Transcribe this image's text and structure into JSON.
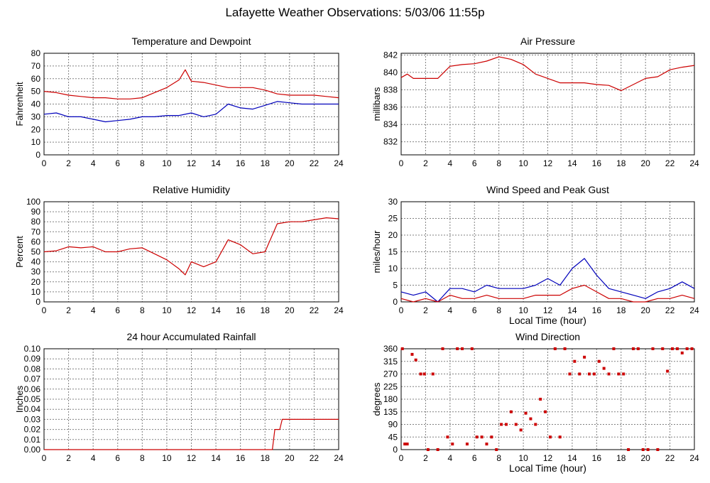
{
  "title": "Lafayette Weather Observations: 5/03/06 11:55p",
  "colors": {
    "red": "#cc0000",
    "blue": "#0000bb",
    "grid": "#808080"
  },
  "chart_data": [
    {
      "type": "line",
      "title": "Temperature and Dewpoint",
      "xlabel": "",
      "ylabel": "Fahrenheit",
      "xlim": [
        0,
        24
      ],
      "ylim": [
        0,
        80
      ],
      "xticks": [
        0,
        2,
        4,
        6,
        8,
        10,
        12,
        14,
        16,
        18,
        20,
        22,
        24
      ],
      "yticks": [
        0,
        10,
        20,
        30,
        40,
        50,
        60,
        70,
        80
      ],
      "grid": true,
      "series": [
        {
          "color": "red",
          "x": [
            0,
            1,
            2,
            3,
            4,
            5,
            6,
            7,
            8,
            9,
            10,
            11,
            11.5,
            12,
            13,
            14,
            15,
            16,
            17,
            18,
            19,
            20,
            21,
            22,
            23,
            24
          ],
          "y": [
            50,
            49,
            47,
            46,
            45,
            45,
            44,
            44,
            45,
            49,
            53,
            59,
            67,
            58,
            57,
            55,
            53,
            53,
            53,
            51,
            48,
            47,
            47,
            47,
            46,
            45
          ]
        },
        {
          "color": "blue",
          "x": [
            0,
            1,
            2,
            3,
            4,
            5,
            6,
            7,
            8,
            9,
            10,
            11,
            12,
            13,
            14,
            15,
            16,
            17,
            18,
            19,
            20,
            21,
            22,
            23,
            24
          ],
          "y": [
            32,
            33,
            30,
            30,
            28,
            26,
            27,
            28,
            30,
            30,
            31,
            31,
            33,
            30,
            32,
            40,
            37,
            36,
            39,
            42,
            41,
            40,
            40,
            40,
            40
          ]
        }
      ]
    },
    {
      "type": "line",
      "title": "Air Pressure",
      "xlabel": "",
      "ylabel": "millibars",
      "xlim": [
        0,
        24
      ],
      "ylim": [
        830.5,
        842.2
      ],
      "xticks": [
        0,
        2,
        4,
        6,
        8,
        10,
        12,
        14,
        16,
        18,
        20,
        22,
        24
      ],
      "yticks": [
        832,
        834,
        836,
        838,
        840,
        842
      ],
      "grid": true,
      "series": [
        {
          "color": "red",
          "x": [
            0,
            0.5,
            1,
            3,
            4,
            5,
            6,
            7,
            8,
            9,
            10,
            11,
            12,
            13,
            14,
            15,
            16,
            17,
            18,
            19,
            20,
            21,
            22,
            23,
            24
          ],
          "y": [
            839.4,
            839.8,
            839.3,
            839.3,
            840.7,
            840.9,
            841.0,
            841.3,
            841.8,
            841.5,
            840.9,
            839.8,
            839.3,
            838.8,
            838.8,
            838.8,
            838.6,
            838.5,
            837.9,
            838.6,
            839.3,
            839.5,
            840.3,
            840.6,
            840.8
          ]
        }
      ]
    },
    {
      "type": "line",
      "title": "Relative Humidity",
      "xlabel": "",
      "ylabel": "Percent",
      "xlim": [
        0,
        24
      ],
      "ylim": [
        0,
        100
      ],
      "xticks": [
        0,
        2,
        4,
        6,
        8,
        10,
        12,
        14,
        16,
        18,
        20,
        22,
        24
      ],
      "yticks": [
        0,
        10,
        20,
        30,
        40,
        50,
        60,
        70,
        80,
        90,
        100
      ],
      "grid": true,
      "series": [
        {
          "color": "red",
          "x": [
            0,
            1,
            2,
            3,
            4,
            5,
            6,
            7,
            8,
            9,
            10,
            11,
            11.5,
            12,
            13,
            14,
            15,
            16,
            17,
            18,
            19,
            20,
            21,
            22,
            23,
            24
          ],
          "y": [
            50,
            51,
            55,
            54,
            55,
            50,
            50,
            53,
            54,
            48,
            42,
            33,
            27,
            40,
            35,
            40,
            62,
            57,
            48,
            50,
            78,
            80,
            80,
            82,
            84,
            83
          ]
        }
      ]
    },
    {
      "type": "line",
      "title": "Wind Speed and Peak Gust",
      "xlabel": "Local Time (hour)",
      "ylabel": "miles/hour",
      "xlim": [
        0,
        24
      ],
      "ylim": [
        0,
        30
      ],
      "xticks": [
        0,
        2,
        4,
        6,
        8,
        10,
        12,
        14,
        16,
        18,
        20,
        22,
        24
      ],
      "yticks": [
        0,
        5,
        10,
        15,
        20,
        25,
        30
      ],
      "grid": true,
      "series": [
        {
          "color": "blue",
          "x": [
            0,
            1,
            2,
            3,
            4,
            5,
            6,
            7,
            8,
            9,
            10,
            11,
            12,
            13,
            14,
            15,
            16,
            17,
            18,
            19,
            20,
            21,
            22,
            23,
            24
          ],
          "y": [
            3,
            2,
            3,
            0,
            4,
            4,
            3,
            5,
            4,
            4,
            4,
            5,
            7,
            5,
            10,
            13,
            8,
            4,
            3,
            2,
            1,
            3,
            4,
            6,
            4
          ]
        },
        {
          "color": "red",
          "x": [
            0,
            1,
            2,
            3,
            4,
            5,
            6,
            7,
            8,
            9,
            10,
            11,
            12,
            13,
            14,
            15,
            16,
            17,
            18,
            19,
            20,
            21,
            22,
            23,
            24
          ],
          "y": [
            1,
            0,
            1,
            0,
            2,
            1,
            1,
            2,
            1,
            1,
            1,
            2,
            2,
            2,
            4,
            5,
            3,
            1,
            1,
            0,
            0,
            1,
            1,
            2,
            1
          ]
        }
      ]
    },
    {
      "type": "line",
      "title": "24 hour Accumulated Rainfall",
      "xlabel": "",
      "ylabel": "Inches",
      "xlim": [
        0,
        24
      ],
      "ylim": [
        0,
        0.1
      ],
      "xticks": [
        0,
        2,
        4,
        6,
        8,
        10,
        12,
        14,
        16,
        18,
        20,
        22,
        24
      ],
      "yticks": [
        "0.00",
        "0.01",
        "0.02",
        "0.03",
        "0.04",
        "0.05",
        "0.06",
        "0.07",
        "0.08",
        "0.09",
        "0.10"
      ],
      "grid": true,
      "series": [
        {
          "color": "red",
          "x": [
            0,
            18.6,
            18.8,
            19.2,
            19.4,
            24
          ],
          "y": [
            0,
            0,
            0.02,
            0.02,
            0.03,
            0.03
          ]
        }
      ]
    },
    {
      "type": "scatter",
      "title": "Wind Direction",
      "xlabel": "Local Time (hour)",
      "ylabel": "degrees",
      "xlim": [
        0,
        24
      ],
      "ylim": [
        0,
        360
      ],
      "xticks": [
        0,
        2,
        4,
        6,
        8,
        10,
        12,
        14,
        16,
        18,
        20,
        22,
        24
      ],
      "yticks": [
        0,
        45,
        90,
        135,
        180,
        225,
        270,
        315,
        360
      ],
      "grid": true,
      "series": [
        {
          "color": "red",
          "x": [
            0.1,
            0.3,
            0.5,
            0.9,
            1.2,
            1.6,
            1.9,
            2.2,
            2.6,
            3.0,
            3.4,
            3.8,
            4.2,
            4.6,
            5.0,
            5.4,
            5.8,
            6.2,
            6.6,
            7.0,
            7.4,
            7.8,
            8.2,
            8.6,
            9.0,
            9.4,
            9.8,
            10.2,
            10.6,
            11.0,
            11.4,
            11.8,
            12.2,
            12.6,
            13.0,
            13.4,
            13.8,
            14.2,
            14.6,
            15.0,
            15.4,
            15.8,
            16.2,
            16.6,
            17.0,
            17.4,
            17.8,
            18.2,
            18.6,
            19.0,
            19.4,
            19.8,
            20.2,
            20.6,
            21.0,
            21.4,
            21.8,
            22.2,
            22.6,
            23.0,
            23.4,
            23.8
          ],
          "y": [
            360,
            20,
            20,
            340,
            320,
            270,
            270,
            0,
            270,
            0,
            360,
            45,
            20,
            360,
            360,
            20,
            360,
            45,
            45,
            20,
            45,
            0,
            90,
            90,
            135,
            90,
            70,
            130,
            110,
            90,
            180,
            135,
            45,
            360,
            45,
            360,
            270,
            315,
            270,
            330,
            270,
            270,
            315,
            290,
            270,
            360,
            270,
            270,
            0,
            360,
            360,
            0,
            0,
            360,
            0,
            360,
            280,
            360,
            360,
            345,
            360,
            360
          ]
        }
      ]
    }
  ]
}
